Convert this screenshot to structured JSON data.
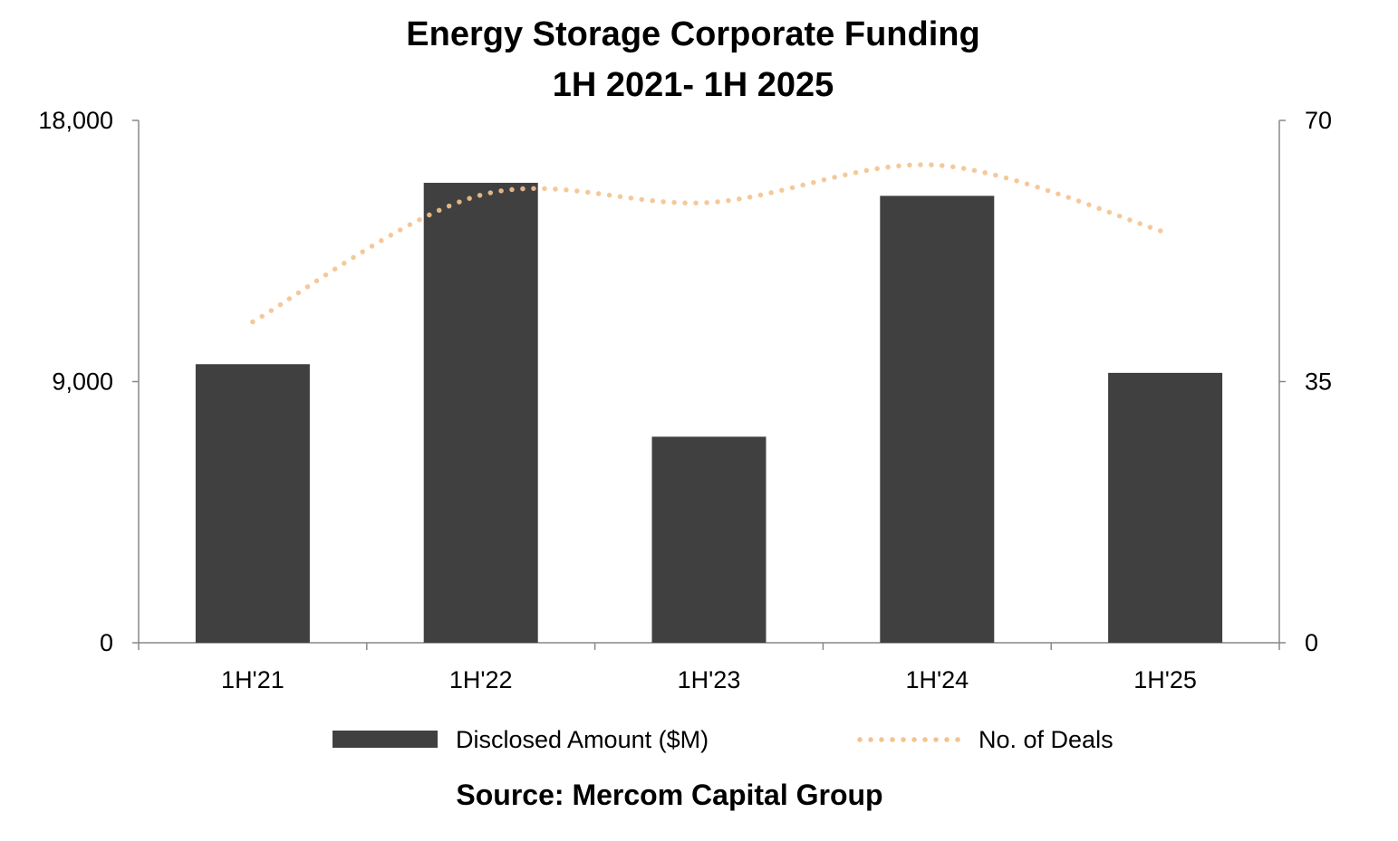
{
  "chart_data": {
    "type": "bar",
    "title": "Energy Storage Corporate Funding",
    "subtitle": "1H 2021- 1H 2025",
    "categories": [
      "1H'21",
      "1H'22",
      "1H'23",
      "1H'24",
      "1H'25"
    ],
    "series": [
      {
        "name": "Disclosed Amount ($M)",
        "type": "bar",
        "axis": "left",
        "color": "#404040",
        "values": [
          9600,
          15850,
          7100,
          15400,
          9300
        ]
      },
      {
        "name": "No. of Deals",
        "type": "line",
        "style": "dotted",
        "axis": "right",
        "color": "#f4c28f",
        "values": [
          43,
          60,
          59,
          64,
          55
        ]
      }
    ],
    "y_left": {
      "ylim": [
        0,
        18000
      ],
      "ticks": [
        "0",
        "9,000",
        "18,000"
      ]
    },
    "y_right": {
      "ylim": [
        0,
        70
      ],
      "ticks": [
        "0",
        "35",
        "70"
      ]
    },
    "legend_position": "bottom",
    "grid": false,
    "source": "Source: Mercom Capital Group"
  }
}
